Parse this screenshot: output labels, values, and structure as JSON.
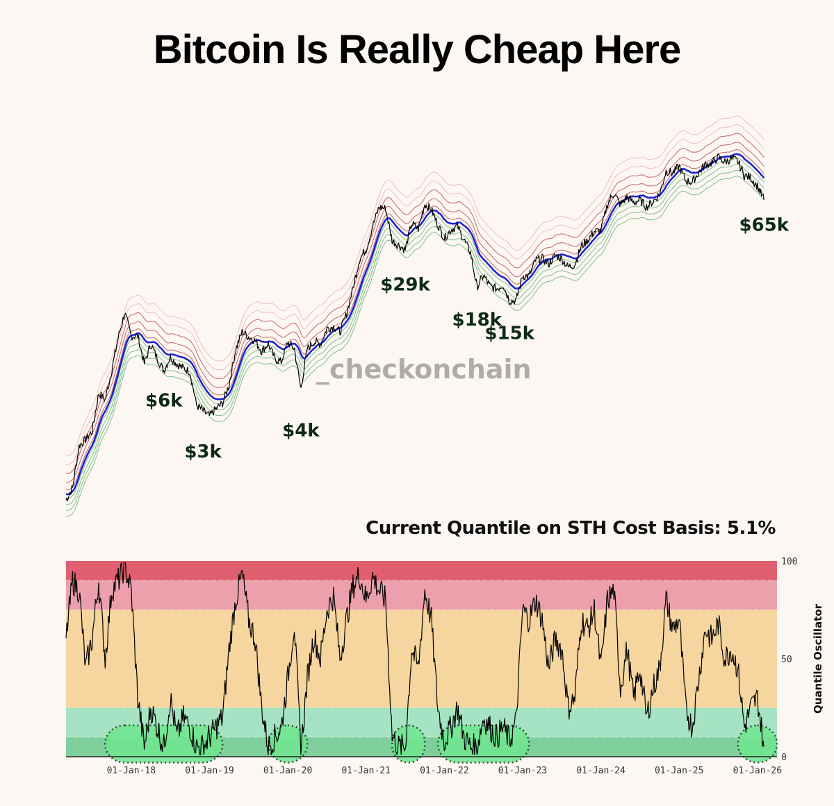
{
  "title": "Bitcoin Is Really Cheap Here",
  "subtitle": "Current Quantile on STH Cost Basis: 5.1%",
  "watermark": "_checkonchain",
  "chart_data": [
    {
      "type": "line",
      "title": "Bitcoin Is Really Cheap Here",
      "yscale": "log",
      "ylim": [
        690,
        238000
      ],
      "xlim": [
        "2017-03",
        "2026-04"
      ],
      "axes_visible": false,
      "grid": false,
      "colors": {
        "price": "#000000",
        "cost_basis": "#1a1fd0",
        "upper_bands": "#b04040",
        "lower_bands": "#3a9a50"
      },
      "series": [
        {
          "x": [
            "2017-03",
            "2017-04",
            "2017-05",
            "2017-06",
            "2017-07",
            "2017-08",
            "2017-09",
            "2017-10",
            "2017-11",
            "2017-12",
            "2018-01",
            "2018-02",
            "2018-03",
            "2018-04",
            "2018-05",
            "2018-06",
            "2018-07",
            "2018-08",
            "2018-09",
            "2018-10",
            "2018-11",
            "2018-12",
            "2019-01",
            "2019-02",
            "2019-03",
            "2019-04",
            "2019-05",
            "2019-06",
            "2019-07",
            "2019-08",
            "2019-09",
            "2019-10",
            "2019-11",
            "2019-12",
            "2020-01",
            "2020-02",
            "2020-03",
            "2020-04",
            "2020-05",
            "2020-06",
            "2020-07",
            "2020-08",
            "2020-09",
            "2020-10",
            "2020-11",
            "2020-12",
            "2021-01",
            "2021-02",
            "2021-03",
            "2021-04",
            "2021-05",
            "2021-06",
            "2021-07",
            "2021-08",
            "2021-09",
            "2021-10",
            "2021-11",
            "2021-12",
            "2022-01",
            "2022-02",
            "2022-03",
            "2022-04",
            "2022-05",
            "2022-06",
            "2022-07",
            "2022-08",
            "2022-09",
            "2022-10",
            "2022-11",
            "2022-12",
            "2023-01",
            "2023-02",
            "2023-03",
            "2023-04",
            "2023-05",
            "2023-06",
            "2023-07",
            "2023-08",
            "2023-09",
            "2023-10",
            "2023-11",
            "2023-12",
            "2024-01",
            "2024-02",
            "2024-03",
            "2024-04",
            "2024-05",
            "2024-06",
            "2024-07",
            "2024-08",
            "2024-09",
            "2024-10",
            "2024-11",
            "2024-12",
            "2025-01",
            "2025-02",
            "2025-03",
            "2025-04",
            "2025-05",
            "2025-06",
            "2025-07",
            "2025-08",
            "2025-09",
            "2025-10",
            "2025-11",
            "2025-12",
            "2026-01",
            "2026-02"
          ],
          "y": [
            1100,
            1300,
            2300,
            2500,
            2800,
            4700,
            4300,
            6400,
            10000,
            14000,
            10200,
            10300,
            7000,
            9200,
            7500,
            6400,
            7700,
            7000,
            6600,
            6300,
            4000,
            3700,
            3450,
            3800,
            4100,
            5300,
            8500,
            10800,
            10100,
            9600,
            8300,
            9200,
            7500,
            7200,
            9350,
            8600,
            5000,
            8600,
            9450,
            9150,
            11300,
            11650,
            10800,
            13800,
            19700,
            29000,
            33100,
            45200,
            58800,
            57700,
            37300,
            35000,
            33000,
            47100,
            43800,
            61300,
            57000,
            46300,
            38500,
            43200,
            45500,
            37700,
            31800,
            19800,
            23300,
            20000,
            19400,
            20500,
            16500,
            16500,
            23100,
            23100,
            28500,
            29300,
            27200,
            30500,
            29200,
            26000,
            27000,
            34500,
            37700,
            42300,
            42600,
            61200,
            71300,
            60600,
            67500,
            62700,
            64600,
            59000,
            63300,
            70200,
            96400,
            93400,
            102400,
            84300,
            82500,
            94200,
            104600,
            107100,
            115700,
            108200,
            114000,
            109500,
            90400,
            87500,
            78000,
            65000
          ]
        }
      ],
      "annotations": [
        {
          "label": "$6k",
          "x": "2018-06",
          "y": 6000
        },
        {
          "label": "$3k",
          "x": "2018-12",
          "y": 3000
        },
        {
          "label": "$4k",
          "x": "2020-03",
          "y": 4000
        },
        {
          "label": "$29k",
          "x": "2021-07",
          "y": 29000
        },
        {
          "label": "$18k",
          "x": "2022-06",
          "y": 18000
        },
        {
          "label": "$15k",
          "x": "2022-11",
          "y": 15000
        },
        {
          "label": "$65k",
          "x": "2026-02",
          "y": 65000
        }
      ]
    },
    {
      "type": "line",
      "ylabel": "Quantile Oscillator",
      "ylim": [
        0,
        100
      ],
      "yticks": [
        "0",
        "50",
        "100"
      ],
      "xticks": [
        "01-Jan-18",
        "01-Jan-19",
        "01-Jan-20",
        "01-Jan-21",
        "01-Jan-22",
        "01-Jan-23",
        "01-Jan-24",
        "01-Jan-25",
        "01-Jan-26"
      ],
      "xtick_dates": [
        "2018-01",
        "2019-01",
        "2020-01",
        "2021-01",
        "2022-01",
        "2023-01",
        "2024-01",
        "2025-01",
        "2026-01"
      ],
      "xlim": [
        "2017-03",
        "2026-04"
      ],
      "bands": [
        {
          "from": 0,
          "to": 10,
          "color": "#7fcf9c"
        },
        {
          "from": 10,
          "to": 25,
          "color": "#a6e3c3"
        },
        {
          "from": 25,
          "to": 75,
          "color": "#f6d59e"
        },
        {
          "from": 75,
          "to": 90,
          "color": "#eba0ab"
        },
        {
          "from": 90,
          "to": 100,
          "color": "#e0606f"
        }
      ],
      "highlights": [
        {
          "from": "2017-09",
          "to": "2019-03"
        },
        {
          "from": "2019-10",
          "to": "2020-04"
        },
        {
          "from": "2021-05",
          "to": "2021-10"
        },
        {
          "from": "2021-12",
          "to": "2023-02"
        },
        {
          "from": "2025-10",
          "to": "2026-04"
        }
      ],
      "highlight_color": "#6fe68f",
      "series": [
        {
          "y": [
            60,
            90,
            85,
            45,
            60,
            90,
            50,
            85,
            90,
            97,
            85,
            30,
            5,
            25,
            15,
            5,
            30,
            10,
            20,
            15,
            5,
            5,
            10,
            15,
            20,
            55,
            80,
            93,
            70,
            60,
            25,
            5,
            10,
            15,
            40,
            68,
            3,
            40,
            62,
            50,
            75,
            82,
            50,
            70,
            87,
            93,
            80,
            92,
            85,
            80,
            10,
            5,
            5,
            55,
            45,
            85,
            70,
            25,
            8,
            15,
            25,
            10,
            5,
            5,
            20,
            15,
            10,
            15,
            8,
            18,
            75,
            70,
            80,
            70,
            45,
            60,
            55,
            25,
            30,
            70,
            65,
            75,
            45,
            80,
            85,
            35,
            55,
            30,
            45,
            20,
            35,
            45,
            80,
            65,
            70,
            25,
            15,
            40,
            65,
            60,
            68,
            50,
            55,
            45,
            15,
            25,
            30,
            5.1
          ]
        }
      ]
    }
  ]
}
